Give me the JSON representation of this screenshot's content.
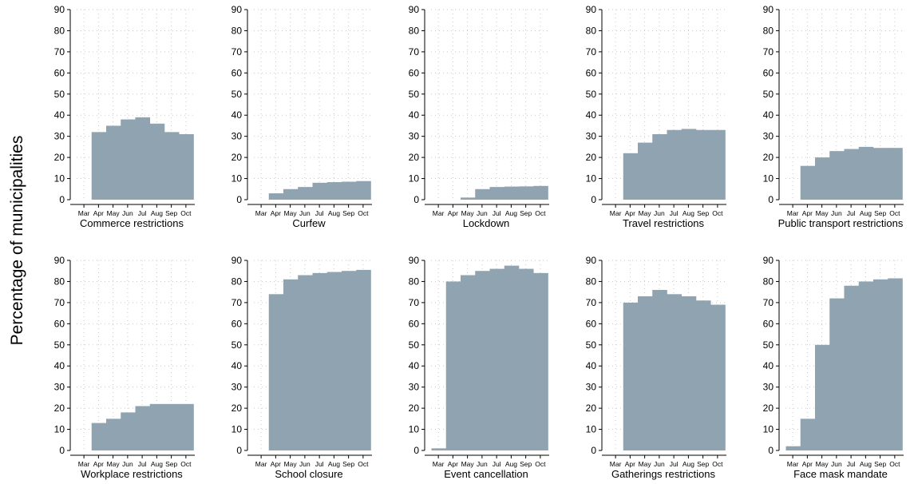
{
  "figure": {
    "ylabel": "Percentage of municipalities"
  },
  "chart_data": [
    {
      "type": "area",
      "title": "Commerce restrictions",
      "x": [
        "Mar",
        "Apr",
        "May",
        "Jun",
        "Jul",
        "Aug",
        "Sep",
        "Oct"
      ],
      "values": [
        0,
        32,
        35,
        38,
        39,
        36,
        32,
        31
      ],
      "ylim": [
        0,
        90
      ],
      "yticks": [
        0,
        10,
        20,
        30,
        40,
        50,
        60,
        70,
        80,
        90
      ],
      "grid": true,
      "color": "#8fa3b0"
    },
    {
      "type": "area",
      "title": "Curfew",
      "x": [
        "Mar",
        "Apr",
        "May",
        "Jun",
        "Jul",
        "Aug",
        "Sep",
        "Oct"
      ],
      "values": [
        0,
        3,
        5,
        6,
        8,
        8.3,
        8.5,
        8.8
      ],
      "ylim": [
        0,
        90
      ],
      "yticks": [
        0,
        10,
        20,
        30,
        40,
        50,
        60,
        70,
        80,
        90
      ],
      "grid": true,
      "color": "#8fa3b0"
    },
    {
      "type": "area",
      "title": "Lockdown",
      "x": [
        "Mar",
        "Apr",
        "May",
        "Jun",
        "Jul",
        "Aug",
        "Sep",
        "Oct"
      ],
      "values": [
        0,
        0,
        1,
        5,
        6,
        6.2,
        6.3,
        6.5
      ],
      "ylim": [
        0,
        90
      ],
      "yticks": [
        0,
        10,
        20,
        30,
        40,
        50,
        60,
        70,
        80,
        90
      ],
      "grid": true,
      "color": "#8fa3b0"
    },
    {
      "type": "area",
      "title": "Travel restrictions",
      "x": [
        "Mar",
        "Apr",
        "May",
        "Jun",
        "Jul",
        "Aug",
        "Sep",
        "Oct"
      ],
      "values": [
        0,
        22,
        27,
        31,
        33,
        33.5,
        33,
        33
      ],
      "ylim": [
        0,
        90
      ],
      "yticks": [
        0,
        10,
        20,
        30,
        40,
        50,
        60,
        70,
        80,
        90
      ],
      "grid": true,
      "color": "#8fa3b0"
    },
    {
      "type": "area",
      "title": "Public transport restrictions",
      "x": [
        "Mar",
        "Apr",
        "May",
        "Jun",
        "Jul",
        "Aug",
        "Sep",
        "Oct"
      ],
      "values": [
        0,
        16,
        20,
        23,
        24,
        25,
        24.5,
        24.5
      ],
      "ylim": [
        0,
        90
      ],
      "yticks": [
        0,
        10,
        20,
        30,
        40,
        50,
        60,
        70,
        80,
        90
      ],
      "grid": true,
      "color": "#8fa3b0"
    },
    {
      "type": "area",
      "title": "Workplace restrictions",
      "x": [
        "Mar",
        "Apr",
        "May",
        "Jun",
        "Jul",
        "Aug",
        "Sep",
        "Oct"
      ],
      "values": [
        0,
        13,
        15,
        18,
        21,
        22,
        22,
        22
      ],
      "ylim": [
        0,
        90
      ],
      "yticks": [
        0,
        10,
        20,
        30,
        40,
        50,
        60,
        70,
        80,
        90
      ],
      "grid": true,
      "color": "#8fa3b0"
    },
    {
      "type": "area",
      "title": "School closure",
      "x": [
        "Mar",
        "Apr",
        "May",
        "Jun",
        "Jul",
        "Aug",
        "Sep",
        "Oct"
      ],
      "values": [
        0,
        74,
        81,
        83,
        84,
        84.5,
        85,
        85.5
      ],
      "ylim": [
        0,
        90
      ],
      "yticks": [
        0,
        10,
        20,
        30,
        40,
        50,
        60,
        70,
        80,
        90
      ],
      "grid": true,
      "color": "#8fa3b0"
    },
    {
      "type": "area",
      "title": "Event cancellation",
      "x": [
        "Mar",
        "Apr",
        "May",
        "Jun",
        "Jul",
        "Aug",
        "Sep",
        "Oct"
      ],
      "values": [
        1,
        80,
        83,
        85,
        86,
        87.5,
        86,
        84
      ],
      "ylim": [
        0,
        90
      ],
      "yticks": [
        0,
        10,
        20,
        30,
        40,
        50,
        60,
        70,
        80,
        90
      ],
      "grid": true,
      "color": "#8fa3b0"
    },
    {
      "type": "area",
      "title": "Gatherings restrictions",
      "x": [
        "Mar",
        "Apr",
        "May",
        "Jun",
        "Jul",
        "Aug",
        "Sep",
        "Oct"
      ],
      "values": [
        0,
        70,
        73,
        76,
        74,
        73,
        71,
        69
      ],
      "ylim": [
        0,
        90
      ],
      "yticks": [
        0,
        10,
        20,
        30,
        40,
        50,
        60,
        70,
        80,
        90
      ],
      "grid": true,
      "color": "#8fa3b0"
    },
    {
      "type": "area",
      "title": "Face mask mandate",
      "x": [
        "Mar",
        "Apr",
        "May",
        "Jun",
        "Jul",
        "Aug",
        "Sep",
        "Oct"
      ],
      "values": [
        2,
        15,
        50,
        72,
        78,
        80,
        81,
        81.5
      ],
      "ylim": [
        0,
        90
      ],
      "yticks": [
        0,
        10,
        20,
        30,
        40,
        50,
        60,
        70,
        80,
        90
      ],
      "grid": true,
      "color": "#8fa3b0"
    }
  ]
}
